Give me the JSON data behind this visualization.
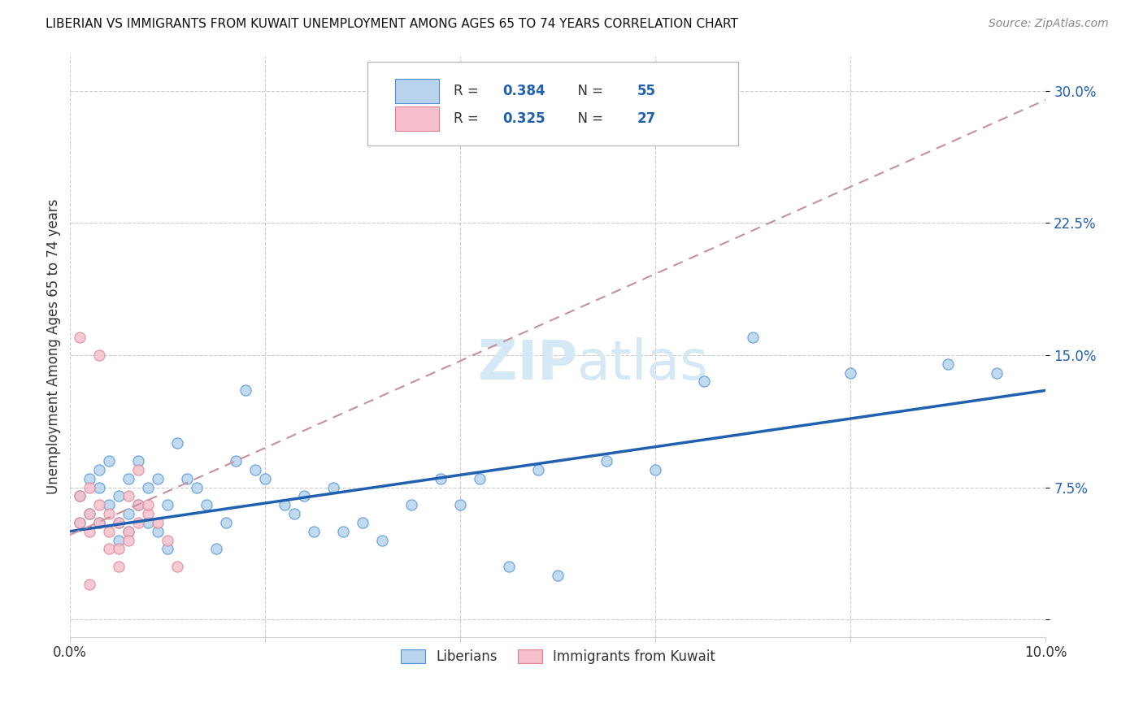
{
  "title": "LIBERIAN VS IMMIGRANTS FROM KUWAIT UNEMPLOYMENT AMONG AGES 65 TO 74 YEARS CORRELATION CHART",
  "source": "Source: ZipAtlas.com",
  "ylabel": "Unemployment Among Ages 65 to 74 years",
  "xlim": [
    0.0,
    0.1
  ],
  "ylim": [
    -0.01,
    0.32
  ],
  "xticklabels_left": "0.0%",
  "xticklabels_right": "10.0%",
  "yticklabels": [
    "",
    "7.5%",
    "15.0%",
    "22.5%",
    "30.0%"
  ],
  "ytick_positions": [
    0.0,
    0.075,
    0.15,
    0.225,
    0.3
  ],
  "legend_r1": "R = 0.384",
  "legend_n1": "N = 55",
  "legend_r2": "R = 0.325",
  "legend_n2": "N = 27",
  "legend_label1": "Liberians",
  "legend_label2": "Immigrants from Kuwait",
  "blue_fill": "#b8d4ed",
  "pink_fill": "#f5c0cc",
  "blue_edge": "#4a90d9",
  "pink_edge": "#e08090",
  "line_blue": "#2060b0",
  "line_pink": "#c8909a",
  "text_blue": "#2060b0",
  "text_dark": "#333333",
  "grid_color": "#cccccc",
  "watermark_color": "#d5e8f5",
  "blue_scatter_x": [
    0.001,
    0.001,
    0.002,
    0.002,
    0.003,
    0.003,
    0.003,
    0.004,
    0.004,
    0.005,
    0.005,
    0.005,
    0.006,
    0.006,
    0.006,
    0.007,
    0.007,
    0.008,
    0.008,
    0.009,
    0.009,
    0.01,
    0.01,
    0.011,
    0.012,
    0.013,
    0.014,
    0.015,
    0.016,
    0.017,
    0.018,
    0.019,
    0.02,
    0.022,
    0.023,
    0.024,
    0.025,
    0.027,
    0.028,
    0.03,
    0.032,
    0.035,
    0.038,
    0.04,
    0.042,
    0.045,
    0.048,
    0.05,
    0.055,
    0.06,
    0.065,
    0.07,
    0.08,
    0.09,
    0.095
  ],
  "blue_scatter_y": [
    0.055,
    0.07,
    0.06,
    0.08,
    0.075,
    0.055,
    0.085,
    0.065,
    0.09,
    0.055,
    0.07,
    0.045,
    0.08,
    0.06,
    0.05,
    0.065,
    0.09,
    0.075,
    0.055,
    0.08,
    0.05,
    0.065,
    0.04,
    0.1,
    0.08,
    0.075,
    0.065,
    0.04,
    0.055,
    0.09,
    0.13,
    0.085,
    0.08,
    0.065,
    0.06,
    0.07,
    0.05,
    0.075,
    0.05,
    0.055,
    0.045,
    0.065,
    0.08,
    0.065,
    0.08,
    0.03,
    0.085,
    0.025,
    0.09,
    0.085,
    0.135,
    0.16,
    0.14,
    0.145,
    0.14
  ],
  "pink_scatter_x": [
    0.001,
    0.001,
    0.001,
    0.002,
    0.002,
    0.002,
    0.002,
    0.003,
    0.003,
    0.003,
    0.004,
    0.004,
    0.004,
    0.005,
    0.005,
    0.005,
    0.006,
    0.006,
    0.006,
    0.007,
    0.007,
    0.007,
    0.008,
    0.008,
    0.009,
    0.01,
    0.011
  ],
  "pink_scatter_y": [
    0.055,
    0.07,
    0.16,
    0.05,
    0.06,
    0.075,
    0.02,
    0.055,
    0.065,
    0.15,
    0.05,
    0.06,
    0.04,
    0.055,
    0.04,
    0.03,
    0.05,
    0.045,
    0.07,
    0.065,
    0.085,
    0.055,
    0.06,
    0.065,
    0.055,
    0.045,
    0.03
  ],
  "blue_line_x": [
    0.0,
    0.1
  ],
  "blue_line_y": [
    0.05,
    0.13
  ],
  "pink_line_x": [
    0.0,
    0.1
  ],
  "pink_line_y": [
    0.048,
    0.295
  ],
  "background_color": "#ffffff"
}
